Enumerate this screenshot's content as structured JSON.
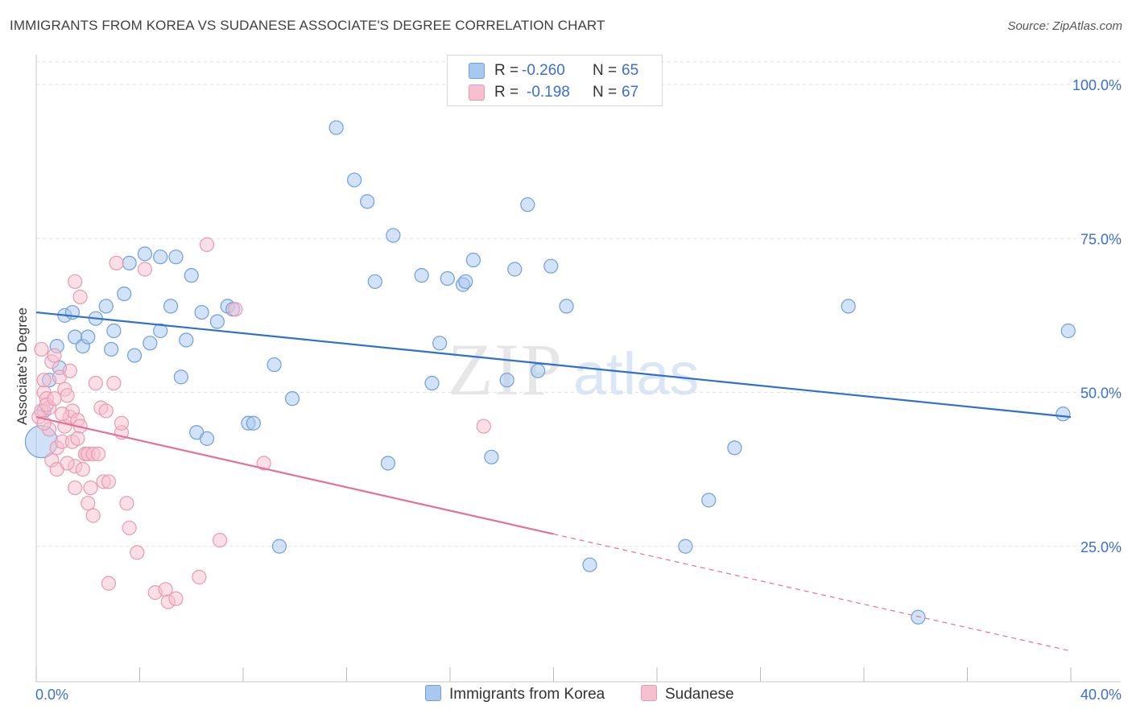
{
  "header": {
    "title": "IMMIGRANTS FROM KOREA VS SUDANESE ASSOCIATE'S DEGREE CORRELATION CHART",
    "source": "Source: ZipAtlas.com"
  },
  "legend": {
    "r_label": "R =",
    "n_label": "N =",
    "series": [
      {
        "name": "Immigrants from Korea",
        "r": "-0.260",
        "n": "65",
        "color": "#a8c8f0",
        "stroke": "#6f9fd8",
        "line": "#2f6fce"
      },
      {
        "name": "Sudanese",
        "r": "-0.198",
        "n": "67",
        "color": "#f7c0d0",
        "stroke": "#e79ab2",
        "line": "#e3709a"
      }
    ]
  },
  "watermark": {
    "a": "ZIP",
    "b": "atlas"
  },
  "chart_data": {
    "type": "scatter",
    "title": "IMMIGRANTS FROM KOREA VS SUDANESE ASSOCIATE'S DEGREE CORRELATION CHART",
    "xlabel": "",
    "ylabel": "Associate's Degree",
    "xlim": [
      0,
      40
    ],
    "ylim": [
      0,
      105
    ],
    "x_tick_labels": [
      "0.0%",
      "40.0%"
    ],
    "y_ticks": [
      25,
      50,
      75,
      100
    ],
    "y_tick_labels": [
      "25.0%",
      "50.0%",
      "75.0%",
      "100.0%"
    ],
    "grid": true,
    "legend_position": "top-center",
    "series": [
      {
        "name": "Immigrants from Korea",
        "points": [
          [
            0.2,
            42
          ],
          [
            0.5,
            52
          ],
          [
            0.8,
            57.5
          ],
          [
            1.1,
            62.5
          ],
          [
            0.9,
            54
          ],
          [
            1.4,
            63
          ],
          [
            1.5,
            59
          ],
          [
            1.8,
            57.5
          ],
          [
            2.0,
            59
          ],
          [
            2.3,
            62
          ],
          [
            2.7,
            64
          ],
          [
            2.9,
            57
          ],
          [
            3.0,
            60
          ],
          [
            3.4,
            66
          ],
          [
            3.6,
            71
          ],
          [
            3.8,
            56
          ],
          [
            4.2,
            72.5
          ],
          [
            4.4,
            58
          ],
          [
            4.8,
            72
          ],
          [
            4.8,
            60
          ],
          [
            5.2,
            64
          ],
          [
            5.4,
            72
          ],
          [
            5.6,
            52.5
          ],
          [
            5.8,
            58.5
          ],
          [
            6.0,
            69
          ],
          [
            6.2,
            43.5
          ],
          [
            6.4,
            63
          ],
          [
            6.6,
            42.5
          ],
          [
            7.0,
            61.5
          ],
          [
            7.4,
            64
          ],
          [
            7.6,
            63.5
          ],
          [
            8.2,
            45
          ],
          [
            8.4,
            45
          ],
          [
            9.2,
            54.5
          ],
          [
            9.4,
            25
          ],
          [
            9.9,
            49
          ],
          [
            11.6,
            93
          ],
          [
            12.3,
            84.5
          ],
          [
            12.8,
            81
          ],
          [
            13.1,
            68
          ],
          [
            13.6,
            38.5
          ],
          [
            13.8,
            75.5
          ],
          [
            14.9,
            69
          ],
          [
            15.3,
            51.5
          ],
          [
            15.6,
            58
          ],
          [
            15.9,
            68.5
          ],
          [
            16.5,
            67.5
          ],
          [
            16.6,
            68
          ],
          [
            16.9,
            71.5
          ],
          [
            17.6,
            39.5
          ],
          [
            18.2,
            52
          ],
          [
            18.5,
            70
          ],
          [
            19.0,
            80.5
          ],
          [
            19.4,
            53.5
          ],
          [
            19.9,
            70.5
          ],
          [
            20.5,
            64
          ],
          [
            21.4,
            22
          ],
          [
            25.1,
            25
          ],
          [
            26.0,
            32.5
          ],
          [
            27.0,
            41
          ],
          [
            31.4,
            64
          ],
          [
            34.1,
            13.5
          ],
          [
            39.7,
            46.5
          ],
          [
            39.9,
            60
          ],
          [
            0.3,
            47
          ]
        ],
        "trend": {
          "x": [
            0,
            40
          ],
          "y": [
            63,
            46
          ]
        }
      },
      {
        "name": "Sudanese",
        "points": [
          [
            0.1,
            46
          ],
          [
            0.2,
            47
          ],
          [
            0.3,
            50
          ],
          [
            0.3,
            52
          ],
          [
            0.4,
            49
          ],
          [
            0.5,
            47.5
          ],
          [
            0.5,
            44
          ],
          [
            0.6,
            55
          ],
          [
            0.6,
            39
          ],
          [
            0.7,
            56
          ],
          [
            0.8,
            41
          ],
          [
            0.8,
            37.5
          ],
          [
            0.9,
            52.5
          ],
          [
            1.0,
            42
          ],
          [
            1.1,
            50.5
          ],
          [
            1.1,
            44.5
          ],
          [
            1.2,
            49.5
          ],
          [
            1.3,
            53.5
          ],
          [
            1.3,
            46
          ],
          [
            1.4,
            42
          ],
          [
            1.4,
            47
          ],
          [
            1.5,
            34.5
          ],
          [
            1.5,
            38
          ],
          [
            1.5,
            68
          ],
          [
            1.6,
            45.5
          ],
          [
            1.7,
            44.5
          ],
          [
            1.7,
            65.5
          ],
          [
            1.8,
            37.5
          ],
          [
            1.9,
            40
          ],
          [
            1.9,
            40
          ],
          [
            2.0,
            32
          ],
          [
            2.0,
            40
          ],
          [
            2.1,
            34.5
          ],
          [
            2.2,
            40
          ],
          [
            2.2,
            30
          ],
          [
            2.3,
            51.5
          ],
          [
            2.5,
            47.5
          ],
          [
            2.6,
            35.5
          ],
          [
            2.7,
            47
          ],
          [
            2.8,
            35.5
          ],
          [
            2.8,
            19
          ],
          [
            3.0,
            51.5
          ],
          [
            3.1,
            71
          ],
          [
            3.3,
            43.5
          ],
          [
            3.3,
            45
          ],
          [
            3.5,
            32
          ],
          [
            3.6,
            28
          ],
          [
            3.9,
            24
          ],
          [
            4.2,
            70
          ],
          [
            4.6,
            17.5
          ],
          [
            5.0,
            18
          ],
          [
            5.1,
            16
          ],
          [
            5.4,
            16.5
          ],
          [
            6.3,
            20
          ],
          [
            6.6,
            74
          ],
          [
            7.1,
            26
          ],
          [
            7.7,
            63.5
          ],
          [
            8.8,
            38.5
          ],
          [
            17.3,
            44.5
          ],
          [
            0.2,
            57
          ],
          [
            0.4,
            48
          ],
          [
            0.7,
            49
          ],
          [
            1.0,
            46.5
          ],
          [
            1.2,
            38.5
          ],
          [
            2.4,
            40
          ],
          [
            0.3,
            45
          ],
          [
            1.6,
            42.5
          ]
        ],
        "trend": {
          "x": [
            0,
            20
          ],
          "y": [
            46,
            27
          ]
        },
        "trend_extension": {
          "x": [
            20,
            40
          ],
          "y": [
            27,
            8
          ]
        }
      }
    ]
  }
}
